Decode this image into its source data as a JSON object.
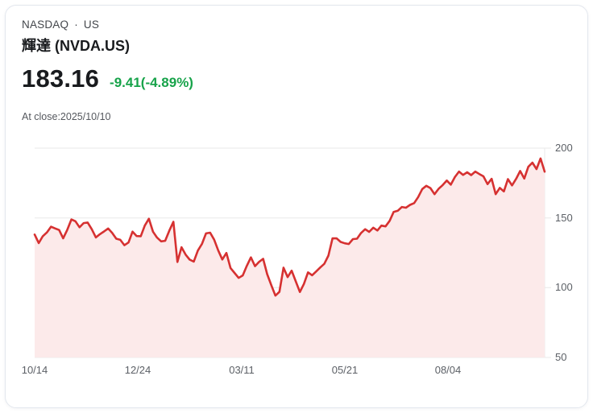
{
  "header": {
    "exchange": "NASDAQ",
    "separator": "·",
    "region": "US",
    "title": "輝達 (NVDA.US)"
  },
  "quote": {
    "last_price": "183.16",
    "change_text": "-9.41(-4.89%)",
    "as_of": "At close:2025/10/10"
  },
  "colors": {
    "line": "#d63131",
    "area_fill": "#fceaea",
    "grid": "#e8e8e8",
    "axis_text": "#5c6066",
    "change_green": "#17a34a",
    "price_text": "#191b1e"
  },
  "chart_data": {
    "type": "area",
    "title": "NVDA.US price history, 2024/10/14 - 2025/10/10",
    "symbol": "NVDA.US",
    "ylim": [
      50,
      200
    ],
    "y_ticks": [
      200,
      150,
      100,
      50
    ],
    "grid": true,
    "legend": "none",
    "y_axis_side": "right",
    "x_labels": [
      {
        "label": "10/14",
        "pos": 0.0
      },
      {
        "label": "12/24",
        "pos": 0.202
      },
      {
        "label": "03/11",
        "pos": 0.406
      },
      {
        "label": "05/21",
        "pos": 0.608
      },
      {
        "label": "08/04",
        "pos": 0.81
      }
    ],
    "values": [
      138.1,
      132.0,
      136.9,
      139.6,
      143.7,
      142.5,
      141.3,
      135.4,
      141.5,
      148.9,
      147.6,
      143.3,
      146.3,
      146.7,
      141.9,
      136.0,
      138.3,
      140.3,
      142.4,
      139.3,
      135.1,
      134.3,
      130.4,
      132.4,
      140.2,
      137.0,
      136.9,
      144.5,
      149.4,
      140.1,
      135.9,
      133.2,
      133.6,
      140.8,
      147.2,
      118.4,
      129.0,
      123.7,
      120.1,
      118.7,
      126.6,
      131.3,
      138.9,
      139.4,
      134.4,
      126.6,
      120.2,
      124.9,
      114.1,
      110.6,
      107.0,
      108.8,
      115.6,
      121.7,
      115.4,
      118.5,
      120.7,
      109.7,
      101.8,
      94.3,
      97.0,
      114.3,
      107.6,
      112.2,
      104.5,
      96.9,
      102.7,
      111.0,
      108.9,
      111.6,
      114.5,
      117.1,
      123.0,
      135.3,
      135.4,
      132.8,
      131.8,
      131.3,
      134.8,
      135.1,
      139.2,
      141.9,
      140.0,
      143.0,
      141.0,
      144.5,
      143.9,
      147.9,
      154.3,
      155.1,
      157.8,
      157.3,
      159.3,
      160.6,
      164.9,
      170.7,
      173.0,
      171.4,
      167.0,
      170.8,
      173.5,
      176.8,
      173.8,
      179.3,
      183.2,
      180.8,
      182.7,
      180.7,
      183.2,
      181.4,
      179.8,
      174.2,
      178.0,
      167.0,
      171.5,
      169.0,
      177.8,
      173.3,
      178.0,
      183.6,
      178.2,
      186.6,
      189.6,
      185.0,
      192.6,
      183.16
    ]
  }
}
